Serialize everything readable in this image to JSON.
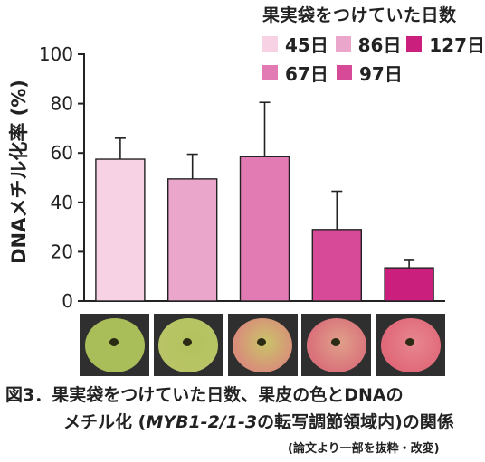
{
  "chart_data": {
    "type": "bar",
    "ylabel": "DNAメチル化率 (%)",
    "ylim": [
      0,
      100
    ],
    "yticks": [
      0,
      20,
      40,
      60,
      80,
      100
    ],
    "grid": false,
    "legend": {
      "title": "果実袋をつけていた日数",
      "placement": "top-right"
    },
    "series": [
      {
        "name": "45日",
        "value": 57.5,
        "error": 8.5,
        "color": "#f6d2e4"
      },
      {
        "name": "86日",
        "value": 49.5,
        "error": 10.0,
        "color": "#eba6cb"
      },
      {
        "name": "67日",
        "value": 58.5,
        "error": 22.0,
        "color": "#e27bb3"
      },
      {
        "name": "97日",
        "value": 29.0,
        "error": 15.5,
        "color": "#d64a98"
      },
      {
        "name": "127日",
        "value": 13.5,
        "error": 3.0,
        "color": "#cb1f7e"
      }
    ]
  },
  "legend_rows": [
    [
      {
        "label": "45日",
        "color": "#f6d2e4"
      },
      {
        "label": "86日",
        "color": "#eba6cb"
      },
      {
        "label": "127日",
        "color": "#cb1f7e"
      }
    ],
    [
      {
        "label": "67日",
        "color": "#e27bb3"
      },
      {
        "label": "97日",
        "color": "#d64a98"
      }
    ]
  ],
  "apple_photos": [
    {
      "skin": "#a9bd58",
      "blush": "#a9bd58"
    },
    {
      "skin": "#b2c35d",
      "blush": "#b9c466"
    },
    {
      "skin": "#c9c46a",
      "blush": "#d98c7a"
    },
    {
      "skin": "#e0a08a",
      "blush": "#d9707a"
    },
    {
      "skin": "#e7878f",
      "blush": "#e06878"
    }
  ],
  "caption": {
    "line1": "図3．果実袋をつけていた日数、果皮の色とDNAの",
    "line2_a": "メチル化 (",
    "line2_gene": "MYB1-2/1-3",
    "line2_b": "の転写調節領域内)の関係",
    "line3": "(論文より一部を抜粋・改変)"
  }
}
